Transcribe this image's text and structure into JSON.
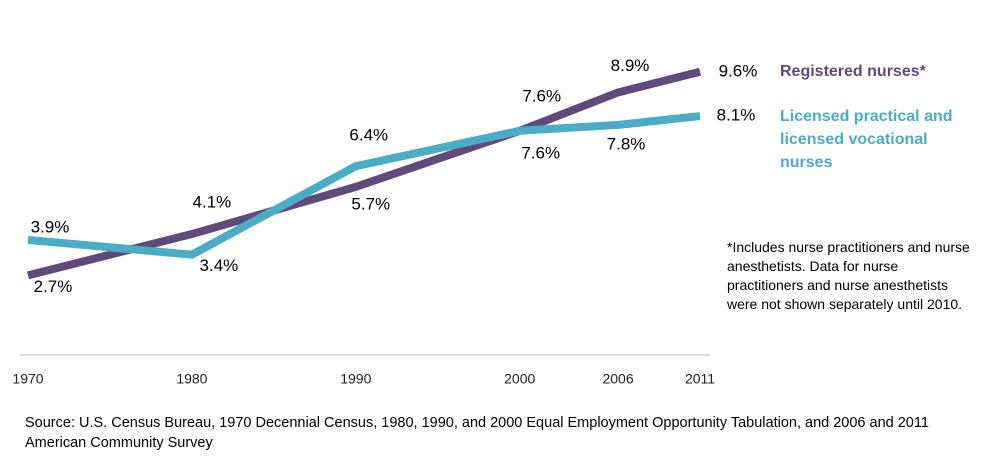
{
  "chart_data": {
    "type": "line",
    "x": [
      1970,
      1980,
      1990,
      2000,
      2006,
      2011
    ],
    "series": [
      {
        "name": "Registered nurses*",
        "color": "#604a7b",
        "values": [
          2.7,
          4.1,
          5.7,
          7.6,
          8.9,
          9.6
        ],
        "value_labels": [
          "2.7%",
          "4.1%",
          "5.7%",
          "7.6%",
          "8.9%",
          "9.6%"
        ]
      },
      {
        "name": "Licensed practical and licensed vocational nurses",
        "color": "#4bacc6",
        "values": [
          3.9,
          3.4,
          6.4,
          7.6,
          7.8,
          8.1
        ],
        "value_labels": [
          "3.9%",
          "3.4%",
          "6.4%",
          "7.6%",
          "7.8%",
          "8.1%"
        ]
      }
    ],
    "footnote": "*Includes nurse practitioners and nurse anesthetists. Data for nurse practitioners and nurse anesthetists were not shown separately until 2010.",
    "source": "Source: U.S. Census Bureau, 1970 Decennial Census, 1980, 1990,  and 2000 Equal Employment Opportunity Tabulation, and 2006 and 2011 American Community Survey"
  }
}
